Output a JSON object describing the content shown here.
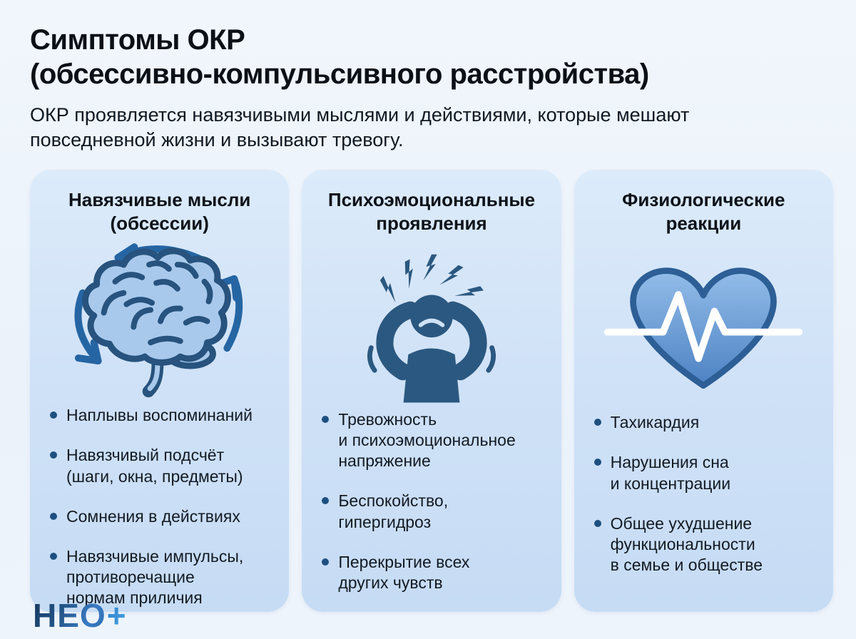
{
  "page": {
    "title_lines": [
      "Симптомы ОКР",
      "(обсессивно-компульсивного расстройства)"
    ],
    "subtitle_lines": [
      "ОКР проявляется навязчивыми мыслями и действиями, которые мешают",
      "повседневной жизни и вызывают тревогу."
    ],
    "logo_text": "НЕО",
    "logo_plus": "+"
  },
  "colors": {
    "background": "#eef3fa",
    "card_bg_top": "#dcebfa",
    "card_bg_bottom": "#c6dcf4",
    "icon_blue": "#2b5880",
    "icon_outline_blue": "#27537e",
    "brain_fill": "#a9c9ec",
    "arrow_blue": "#2565a3",
    "heart_fill_top": "#93bde9",
    "heart_fill_bottom": "#4d82c3",
    "bullet_dot": "#1d5080",
    "logo_blue": "#2e6db4"
  },
  "cards": [
    {
      "title_lines": [
        "Навязчивые мысли",
        "(обсессии)"
      ],
      "icon": "brain-rotation-icon",
      "items": [
        {
          "lines": [
            "Наплывы воспоминаний"
          ]
        },
        {
          "lines": [
            "Навязчивый подсчёт",
            "(шаги, окна, предметы)"
          ]
        },
        {
          "lines": [
            "Сомнения в действиях"
          ]
        },
        {
          "lines": [
            "Навязчивые импульсы,",
            "противоречащие",
            "нормам приличия"
          ]
        }
      ]
    },
    {
      "title_lines": [
        "Психоэмоциональные",
        "проявления"
      ],
      "icon": "stressed-person-icon",
      "items": [
        {
          "lines": [
            "Тревожность",
            "и психоэмоциональное",
            "напряжение"
          ]
        },
        {
          "lines": [
            "Беспокойство,",
            "гипергидроз"
          ]
        },
        {
          "lines": [
            "Перекрытие всех",
            "других чувств"
          ]
        }
      ]
    },
    {
      "title_lines": [
        "Физиологические",
        "реакции"
      ],
      "icon": "heartbeat-heart-icon",
      "items": [
        {
          "lines": [
            "Тахикардия"
          ]
        },
        {
          "lines": [
            "Нарушения сна",
            "и концентрации"
          ]
        },
        {
          "lines": [
            "Общее ухудшение",
            "функциональности",
            "в семье и обществе"
          ]
        }
      ]
    }
  ]
}
